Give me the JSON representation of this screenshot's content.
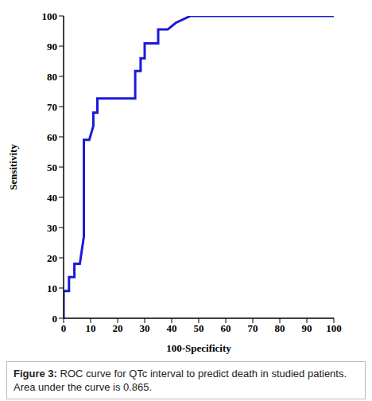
{
  "chart_data": {
    "type": "line",
    "title": "Figure 3: ROC curve for QTc interval to predict death in studied patients. Area under the curve is 0.865.",
    "x_label": "100-Specificity",
    "y_label": "Sensitivity",
    "x": [
      0,
      0,
      2,
      2,
      4,
      4,
      6,
      7.5,
      7.5,
      9.5,
      11,
      11,
      12.5,
      12.5,
      26.5,
      26.5,
      28.5,
      28.5,
      30,
      30,
      35,
      35,
      38.5,
      41.5,
      47,
      100
    ],
    "series": [
      {
        "name": "QTc interval",
        "color": "#1a1ad8",
        "values": [
          0,
          9,
          9,
          13.6,
          13.6,
          18,
          18,
          27,
          59,
          59,
          63.6,
          68,
          68,
          72.7,
          72.7,
          81.8,
          81.8,
          86,
          86,
          90.9,
          90.9,
          95.5,
          95.5,
          97.7,
          100,
          100
        ]
      }
    ],
    "xlim": [
      0,
      100
    ],
    "ylim": [
      0,
      100
    ],
    "xticks": [
      0,
      10,
      20,
      30,
      40,
      50,
      60,
      70,
      80,
      90,
      100
    ],
    "yticks": [
      0,
      10,
      20,
      30,
      40,
      50,
      60,
      70,
      80,
      90,
      100
    ],
    "grid": false
  }
}
